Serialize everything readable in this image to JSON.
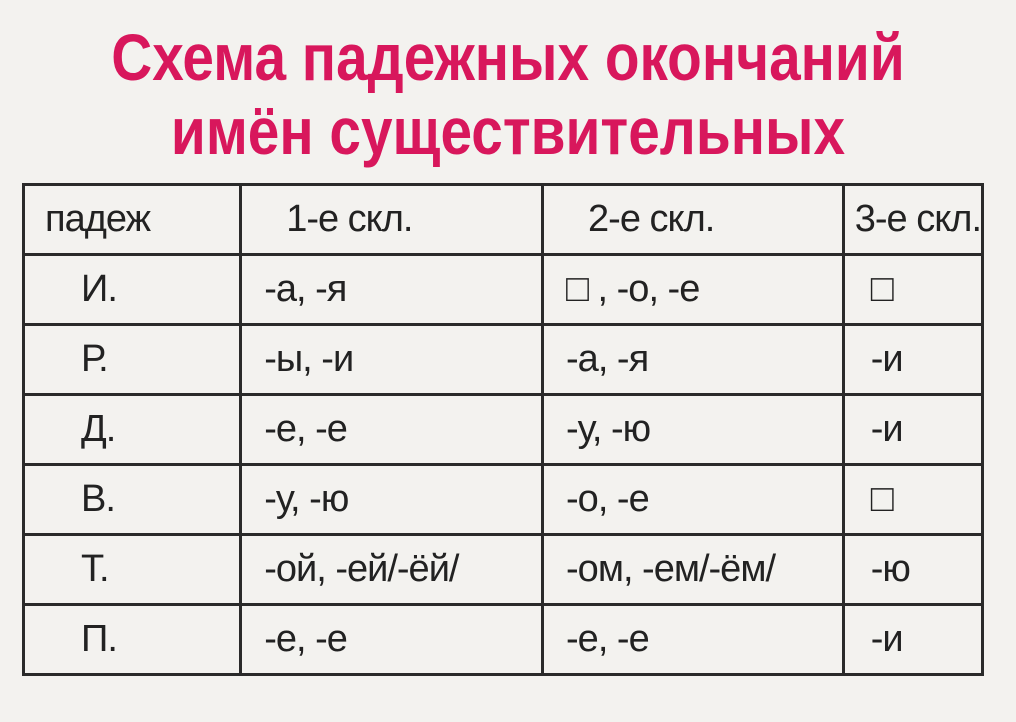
{
  "title": {
    "line1": "Схема падежных окончаний",
    "line2": "имён существительных"
  },
  "table": {
    "headers": [
      "падеж",
      "1-е скл.",
      "2-е скл.",
      "3-е скл."
    ],
    "rows": [
      [
        "И.",
        "-а, -я",
        "□ , -о, -е",
        "□"
      ],
      [
        "Р.",
        "-ы, -и",
        "-а, -я",
        "-и"
      ],
      [
        "Д.",
        "-е, -е",
        "-у, -ю",
        "-и"
      ],
      [
        "В.",
        "-у, -ю",
        "-о, -е",
        "□"
      ],
      [
        "Т.",
        "-ой, -ей/-ёй/",
        "-ом, -ем/-ём/",
        "-ю"
      ],
      [
        "П.",
        "-е, -е",
        "-е, -е",
        "-и"
      ]
    ]
  },
  "colors": {
    "title": "#d8175c",
    "background": "#f3f2ef",
    "text": "#222222"
  }
}
